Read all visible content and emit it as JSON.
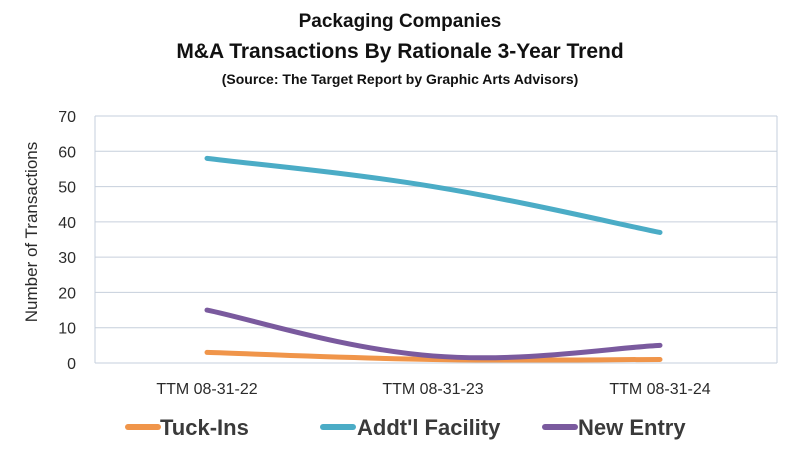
{
  "chart_data": {
    "type": "line",
    "title": "Packaging Companies",
    "subtitle": "M&A Transactions By Rationale 3-Year Trend",
    "source": "(Source: The Target Report by Graphic Arts Advisors)",
    "ylabel": "Number of Transactions",
    "xlabel": "",
    "categories": [
      "TTM 08-31-22",
      "TTM 08-31-23",
      "TTM 08-31-24"
    ],
    "ylim": [
      0,
      70
    ],
    "yticks": [
      0,
      10,
      20,
      30,
      40,
      50,
      60,
      70
    ],
    "grid": true,
    "legend_position": "bottom",
    "series": [
      {
        "name": "Tuck-Ins",
        "values": [
          3,
          1,
          1
        ],
        "color": "#f0954a"
      },
      {
        "name": "Addt'l Facility",
        "values": [
          58,
          50,
          37
        ],
        "color": "#4bacc6"
      },
      {
        "name": "New Entry",
        "values": [
          15,
          2,
          5
        ],
        "color": "#7a5a9e"
      }
    ]
  }
}
